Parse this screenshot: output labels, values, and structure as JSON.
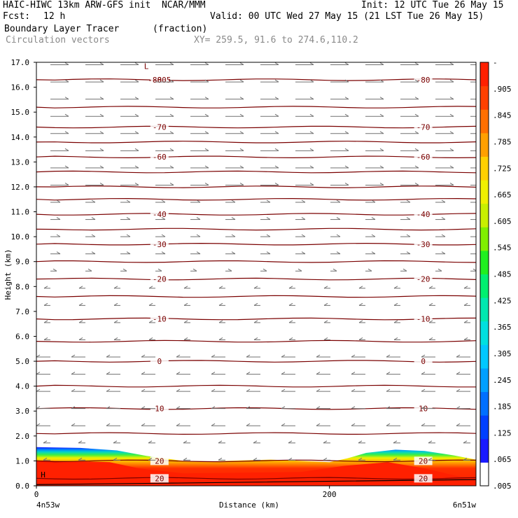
{
  "header": {
    "title_line": "HAIC-HIWC 13km ARW-GFS init  NCAR/MMM",
    "init": "Init: 12 UTC Tue 26 May 15",
    "fcst_label": "Fcst:",
    "fcst_value": "12 h",
    "valid": "Valid: 00 UTC Wed 27 May 15 (21 LST Tue 26 May 15)",
    "field_name": "Boundary Layer Tracer",
    "field_units": "(fraction)",
    "vectors_label": "Circulation vectors",
    "xy_range": "XY= 259.5, 91.6 to 274.6,110.2"
  },
  "chart_data": {
    "type": "heatmap",
    "ylabel": "Height (km)",
    "xlabel": "Distance (km)",
    "ylim": [
      0,
      17
    ],
    "xlim": [
      0,
      300
    ],
    "yticks": [
      "0.0",
      "1.0",
      "2.0",
      "3.0",
      "4.0",
      "5.0",
      "6.0",
      "7.0",
      "8.0",
      "9.0",
      "10.0",
      "11.0",
      "12.0",
      "13.0",
      "14.0",
      "15.0",
      "16.0",
      "17.0"
    ],
    "xticks": [
      {
        "value": 0,
        "label": "0"
      },
      {
        "value": 200,
        "label": "200"
      }
    ],
    "x_end_labels": {
      "left": "4n53w",
      "right": "6n51w"
    },
    "colorbar_labels": [
      "-",
      ".905",
      ".845",
      ".785",
      ".725",
      ".665",
      ".605",
      ".545",
      ".485",
      ".425",
      ".365",
      ".305",
      ".245",
      ".185",
      ".125",
      ".065",
      ".005"
    ],
    "colorbar_colors": [
      "#ffffff",
      "#1a1aff",
      "#0040ff",
      "#0070ff",
      "#00a0ff",
      "#00c8ff",
      "#00e0e0",
      "#00e8b0",
      "#00f070",
      "#20f020",
      "#80f000",
      "#c8f000",
      "#f0f000",
      "#ffd000",
      "#ffa000",
      "#ff7000",
      "#ff4000",
      "#ff2000"
    ],
    "temperature_contours": [
      {
        "z": 0.3,
        "label": "20"
      },
      {
        "z": 1.0,
        "label": "20"
      },
      {
        "z": 2.1,
        "label": ""
      },
      {
        "z": 3.1,
        "label": "10"
      },
      {
        "z": 4.0,
        "label": ""
      },
      {
        "z": 5.0,
        "label": "0"
      },
      {
        "z": 5.8,
        "label": ""
      },
      {
        "z": 6.7,
        "label": "-10"
      },
      {
        "z": 7.6,
        "label": ""
      },
      {
        "z": 8.3,
        "label": "-20"
      },
      {
        "z": 9.0,
        "label": ""
      },
      {
        "z": 9.7,
        "label": "-30"
      },
      {
        "z": 10.3,
        "label": ""
      },
      {
        "z": 10.9,
        "label": "-40"
      },
      {
        "z": 11.5,
        "label": ""
      },
      {
        "z": 12.0,
        "label": ""
      },
      {
        "z": 12.6,
        "label": ""
      },
      {
        "z": 13.2,
        "label": "-60"
      },
      {
        "z": 13.8,
        "label": ""
      },
      {
        "z": 14.4,
        "label": "-70"
      },
      {
        "z": 15.2,
        "label": ""
      },
      {
        "z": 16.3,
        "label": "-80"
      }
    ],
    "extra_labels": [
      "-80.5",
      "L",
      "H"
    ]
  }
}
